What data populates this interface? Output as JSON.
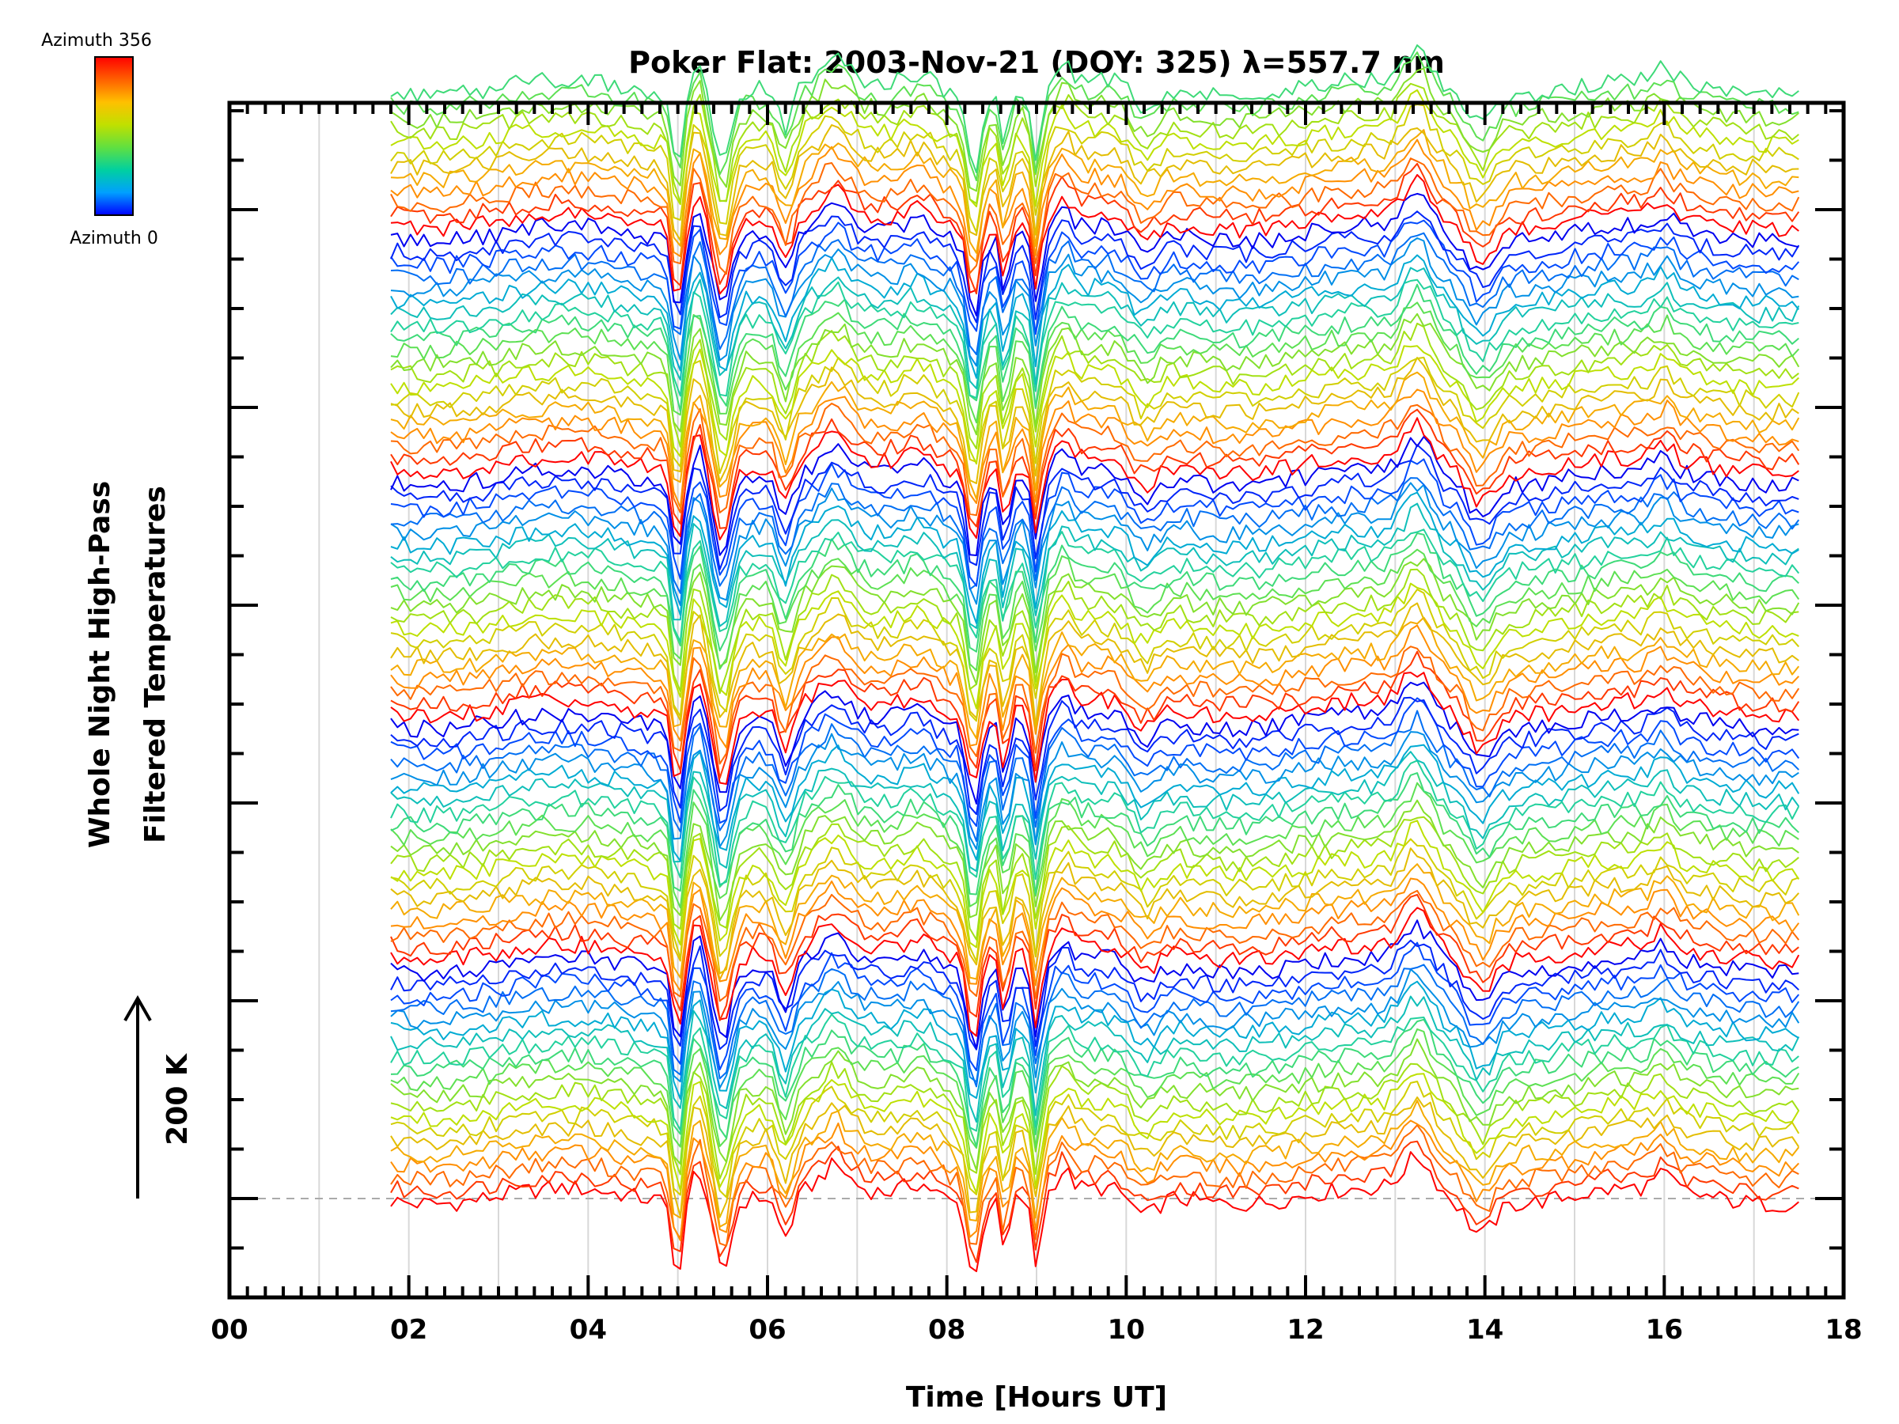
{
  "chart_data": {
    "type": "line",
    "title": "Poker Flat: 2003-Nov-21 (DOY: 325) λ=557.7 nm",
    "xlabel": "Time [Hours UT]",
    "ylabel_line1": "Whole Night High-Pass",
    "ylabel_line2": "Filtered Temperatures",
    "xlim": [
      0,
      18
    ],
    "x_ticks": [
      "00",
      "02",
      "04",
      "06",
      "08",
      "10",
      "12",
      "14",
      "16",
      "18"
    ],
    "x_range_data": [
      1.8,
      17.5
    ],
    "y_scale_label": "200 K",
    "colorbar": {
      "top_label": "Azimuth 356",
      "bottom_label": "Azimuth 0",
      "colors": [
        "#0000ff",
        "#00a0ff",
        "#00d0a0",
        "#60e040",
        "#c0e000",
        "#ffc000",
        "#ff6000",
        "#ff0000"
      ]
    },
    "series_count": 92,
    "grid": "vertical",
    "stacked": true,
    "features": {
      "dips": [
        5.0,
        5.5,
        6.2,
        8.3,
        8.65,
        9.0,
        10.2,
        13.9
      ],
      "peaks": [
        5.2,
        6.75,
        7.7,
        9.3,
        13.25,
        16.0
      ]
    }
  }
}
